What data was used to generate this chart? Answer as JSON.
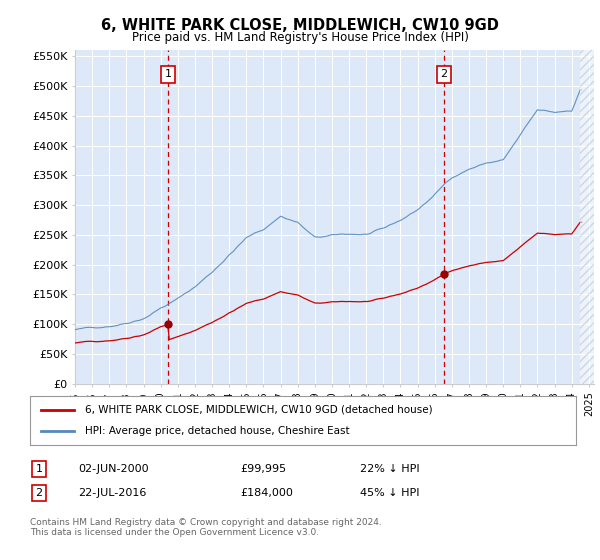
{
  "title": "6, WHITE PARK CLOSE, MIDDLEWICH, CW10 9GD",
  "subtitle": "Price paid vs. HM Land Registry's House Price Index (HPI)",
  "ylim": [
    0,
    560000
  ],
  "yticks": [
    0,
    50000,
    100000,
    150000,
    200000,
    250000,
    300000,
    350000,
    400000,
    450000,
    500000,
    550000
  ],
  "ytick_labels": [
    "£0",
    "£50K",
    "£100K",
    "£150K",
    "£200K",
    "£250K",
    "£300K",
    "£350K",
    "£400K",
    "£450K",
    "£500K",
    "£550K"
  ],
  "xtick_years": [
    1995,
    1996,
    1997,
    1998,
    1999,
    2000,
    2001,
    2002,
    2003,
    2004,
    2005,
    2006,
    2007,
    2008,
    2009,
    2010,
    2011,
    2012,
    2013,
    2014,
    2015,
    2016,
    2017,
    2018,
    2019,
    2020,
    2021,
    2022,
    2023,
    2024,
    2025
  ],
  "bg_color": "#dde8f8",
  "grid_color": "#ffffff",
  "red_line_color": "#cc0000",
  "blue_line_color": "#5588bb",
  "vline_color": "#cc0000",
  "sale1_x": 2000.42,
  "sale1_y": 99995,
  "sale2_x": 2016.55,
  "sale2_y": 184000,
  "marker_dot_color": "#990000",
  "transaction1": {
    "date": "02-JUN-2000",
    "price": "£99,995",
    "hpi": "22% ↓ HPI"
  },
  "transaction2": {
    "date": "22-JUL-2016",
    "price": "£184,000",
    "hpi": "45% ↓ HPI"
  },
  "legend_line1": "6, WHITE PARK CLOSE, MIDDLEWICH, CW10 9GD (detached house)",
  "legend_line2": "HPI: Average price, detached house, Cheshire East",
  "footer": "Contains HM Land Registry data © Crown copyright and database right 2024.\nThis data is licensed under the Open Government Licence v3.0.",
  "hatch_start_x": 2024.5,
  "xlim_end": 2025.3
}
